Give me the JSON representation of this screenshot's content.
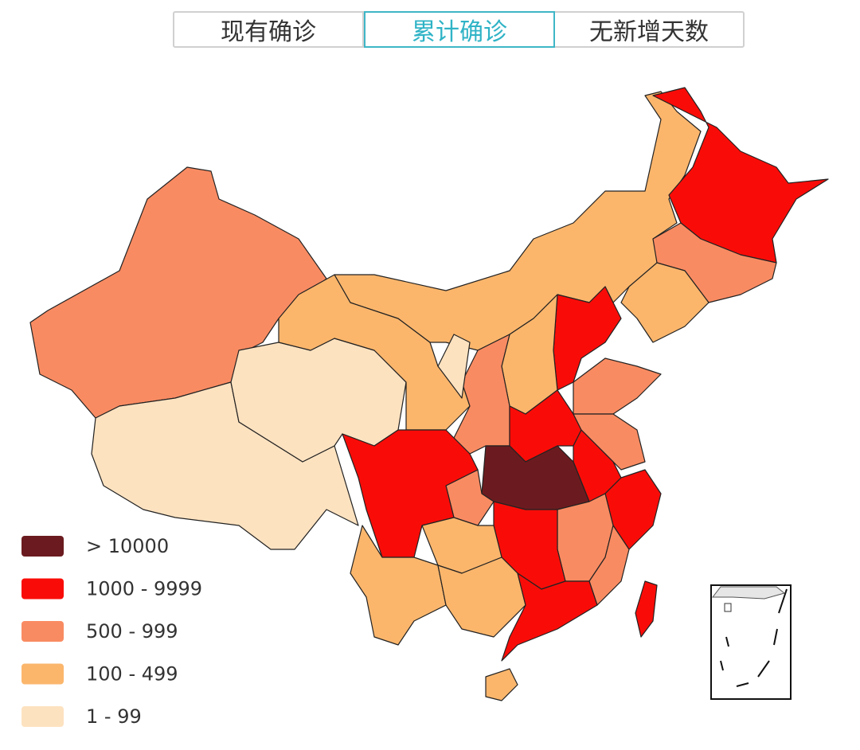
{
  "tabs": [
    "现有确诊",
    "累计确诊",
    "无新增天数"
  ],
  "active_tab": 1,
  "legend": [
    {
      "label": "> 10000",
      "color": "#6b1b1f"
    },
    {
      "label": "1000 - 9999",
      "color": "#f90c08"
    },
    {
      "label": "500 - 999",
      "color": "#f98b62"
    },
    {
      "label": "100 - 499",
      "color": "#fbb66c"
    },
    {
      "label": "1 - 99",
      "color": "#fde2c0"
    }
  ]
}
